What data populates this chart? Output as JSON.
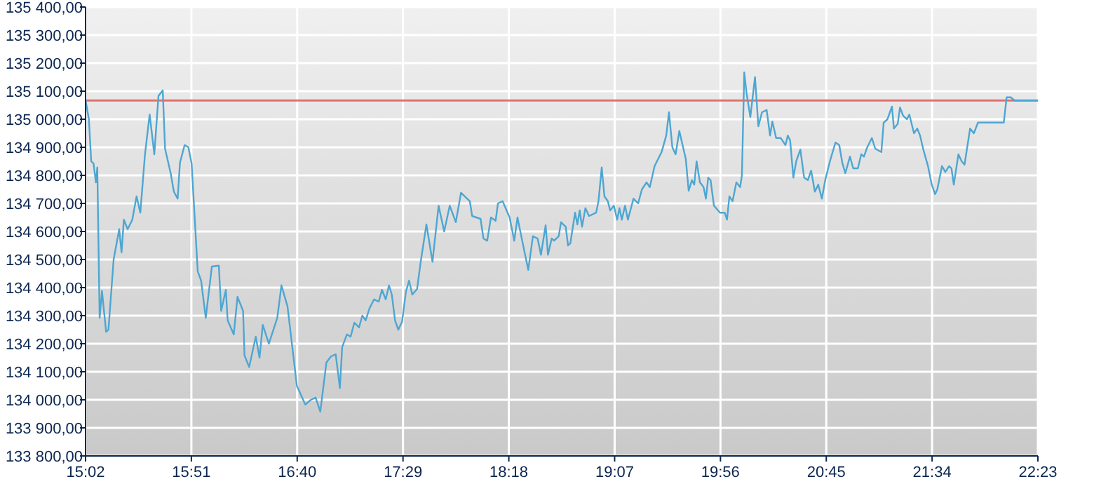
{
  "chart_data": {
    "type": "line",
    "grid": true,
    "xlim": [
      15.0333,
      22.3833
    ],
    "ylim": [
      133800,
      135400
    ],
    "xticks": [
      {
        "value": 15.0333,
        "label": "15:02"
      },
      {
        "value": 15.85,
        "label": "15:51"
      },
      {
        "value": 16.6667,
        "label": "16:40"
      },
      {
        "value": 17.4833,
        "label": "17:29"
      },
      {
        "value": 18.3,
        "label": "18:18"
      },
      {
        "value": 19.1167,
        "label": "19:07"
      },
      {
        "value": 19.9333,
        "label": "19:56"
      },
      {
        "value": 20.75,
        "label": "20:45"
      },
      {
        "value": 21.5667,
        "label": "21:34"
      },
      {
        "value": 22.3833,
        "label": "22:23"
      }
    ],
    "yticks": [
      {
        "value": 133800,
        "label": "133 800,00"
      },
      {
        "value": 133900,
        "label": "133 900,00"
      },
      {
        "value": 134000,
        "label": "134 000,00"
      },
      {
        "value": 134100,
        "label": "134 100,00"
      },
      {
        "value": 134200,
        "label": "134 200,00"
      },
      {
        "value": 134300,
        "label": "134 300,00"
      },
      {
        "value": 134400,
        "label": "134 400,00"
      },
      {
        "value": 134500,
        "label": "134 500,00"
      },
      {
        "value": 134600,
        "label": "134 600,00"
      },
      {
        "value": 134700,
        "label": "134 700,00"
      },
      {
        "value": 134800,
        "label": "134 800,00"
      },
      {
        "value": 134900,
        "label": "134 900,00"
      },
      {
        "value": 135000,
        "label": "135 000,00"
      },
      {
        "value": 135100,
        "label": "135 100,00"
      },
      {
        "value": 135200,
        "label": "135 200,00"
      },
      {
        "value": 135300,
        "label": "135 300,00"
      },
      {
        "value": 135400,
        "label": "135 400,00"
      }
    ],
    "ref_lines": [
      {
        "axis": "y",
        "value": 135067,
        "color": "#e07070"
      }
    ],
    "series": [
      {
        "color": "#4ea6d2",
        "marker": "none",
        "x": [
          15.034,
          15.059,
          15.077,
          15.095,
          15.113,
          15.124,
          15.142,
          15.16,
          15.192,
          15.21,
          15.25,
          15.293,
          15.311,
          15.329,
          15.358,
          15.394,
          15.427,
          15.456,
          15.492,
          15.528,
          15.564,
          15.596,
          15.629,
          15.647,
          15.69,
          15.715,
          15.744,
          15.762,
          15.798,
          15.827,
          15.852,
          15.899,
          15.925,
          15.961,
          16.008,
          16.062,
          16.08,
          16.116,
          16.13,
          16.177,
          16.206,
          16.249,
          16.26,
          16.296,
          16.347,
          16.376,
          16.401,
          16.448,
          16.513,
          16.545,
          16.592,
          16.664,
          16.729,
          16.772,
          16.809,
          16.845,
          16.892,
          16.928,
          16.964,
          16.996,
          17.014,
          17.05,
          17.079,
          17.108,
          17.144,
          17.169,
          17.195,
          17.224,
          17.26,
          17.296,
          17.321,
          17.35,
          17.375,
          17.397,
          17.422,
          17.447,
          17.476,
          17.505,
          17.53,
          17.555,
          17.592,
          17.62,
          17.664,
          17.711,
          17.758,
          17.801,
          17.844,
          17.891,
          17.931,
          17.999,
          18.017,
          18.082,
          18.104,
          18.133,
          18.162,
          18.198,
          18.216,
          18.252,
          18.306,
          18.342,
          18.367,
          18.396,
          18.45,
          18.486,
          18.522,
          18.548,
          18.584,
          18.602,
          18.631,
          18.649,
          18.685,
          18.703,
          18.739,
          18.757,
          18.775,
          18.811,
          18.829,
          18.847,
          18.865,
          18.891,
          18.919,
          18.974,
          18.992,
          19.017,
          19.038,
          19.064,
          19.082,
          19.111,
          19.136,
          19.154,
          19.172,
          19.197,
          19.219,
          19.262,
          19.298,
          19.327,
          19.363,
          19.388,
          19.425,
          19.479,
          19.515,
          19.536,
          19.562,
          19.587,
          19.616,
          19.641,
          19.666,
          19.688,
          19.713,
          19.731,
          19.749,
          19.775,
          19.803,
          19.821,
          19.839,
          19.857,
          19.883,
          19.93,
          19.966,
          19.984,
          20.002,
          20.027,
          20.056,
          20.085,
          20.099,
          20.117,
          20.135,
          20.164,
          20.2,
          20.226,
          20.254,
          20.29,
          20.316,
          20.334,
          20.363,
          20.399,
          20.435,
          20.453,
          20.471,
          20.496,
          20.518,
          20.55,
          20.579,
          20.608,
          20.633,
          20.662,
          20.688,
          20.716,
          20.742,
          20.778,
          20.821,
          20.85,
          20.875,
          20.897,
          20.933,
          20.958,
          20.994,
          21.02,
          21.041,
          21.066,
          21.102,
          21.128,
          21.175,
          21.193,
          21.222,
          21.257,
          21.272,
          21.301,
          21.319,
          21.344,
          21.373,
          21.391,
          21.427,
          21.452,
          21.474,
          21.499,
          21.535,
          21.564,
          21.59,
          21.607,
          21.643,
          21.669,
          21.698,
          21.716,
          21.734,
          21.77,
          21.795,
          21.817,
          21.86,
          21.889,
          21.921,
          22.12,
          22.142,
          22.174,
          22.203,
          22.383
        ],
        "values": [
          135067,
          135000,
          134850,
          134842,
          134775,
          134828,
          134292,
          134388,
          134242,
          134250,
          134500,
          134608,
          134525,
          134642,
          134608,
          134642,
          134725,
          134667,
          134875,
          135017,
          134875,
          135083,
          135103,
          134895,
          134808,
          134742,
          134717,
          134845,
          134908,
          134900,
          134842,
          134458,
          134425,
          134292,
          134475,
          134478,
          134317,
          134392,
          134283,
          134233,
          134367,
          134317,
          134158,
          134117,
          134225,
          134150,
          134267,
          134200,
          134292,
          134408,
          134333,
          134050,
          133983,
          134000,
          134008,
          133958,
          134133,
          134155,
          134162,
          134042,
          134188,
          134233,
          134225,
          134275,
          134258,
          134300,
          134283,
          134325,
          134358,
          134350,
          134392,
          134358,
          134408,
          134375,
          134283,
          134250,
          134278,
          134383,
          134425,
          134375,
          134395,
          134492,
          134625,
          134492,
          134692,
          134600,
          134692,
          134633,
          134738,
          134708,
          134655,
          134645,
          134575,
          134567,
          134650,
          134638,
          134700,
          134708,
          134650,
          134567,
          134650,
          134583,
          134463,
          134583,
          134575,
          134517,
          134622,
          134517,
          134575,
          134567,
          134583,
          134633,
          134617,
          134550,
          134558,
          134667,
          134625,
          134675,
          134617,
          134683,
          134655,
          134667,
          134708,
          134828,
          134725,
          134708,
          134675,
          134692,
          134642,
          134683,
          134642,
          134692,
          134642,
          134717,
          134700,
          134750,
          134775,
          134758,
          134833,
          134883,
          134942,
          135025,
          134900,
          134875,
          134958,
          134908,
          134858,
          134745,
          134783,
          134767,
          134850,
          134775,
          134758,
          134717,
          134792,
          134783,
          134692,
          134667,
          134667,
          134642,
          134725,
          134708,
          134775,
          134758,
          134800,
          135167,
          135092,
          135008,
          135150,
          134975,
          135025,
          135033,
          134942,
          134992,
          134933,
          134933,
          134908,
          134942,
          134925,
          134792,
          134850,
          134892,
          134792,
          134783,
          134817,
          134742,
          134767,
          134717,
          134783,
          134850,
          134917,
          134908,
          134842,
          134808,
          134867,
          134825,
          134825,
          134875,
          134867,
          134900,
          134933,
          134895,
          134883,
          134988,
          135000,
          135045,
          134967,
          134983,
          135042,
          135012,
          135000,
          135017,
          134950,
          134967,
          134942,
          134892,
          134833,
          134767,
          134733,
          134750,
          134833,
          134812,
          134833,
          134825,
          134767,
          134875,
          134850,
          134838,
          134967,
          134950,
          134988,
          134988,
          135078,
          135078,
          135067,
          135067
        ]
      }
    ]
  }
}
